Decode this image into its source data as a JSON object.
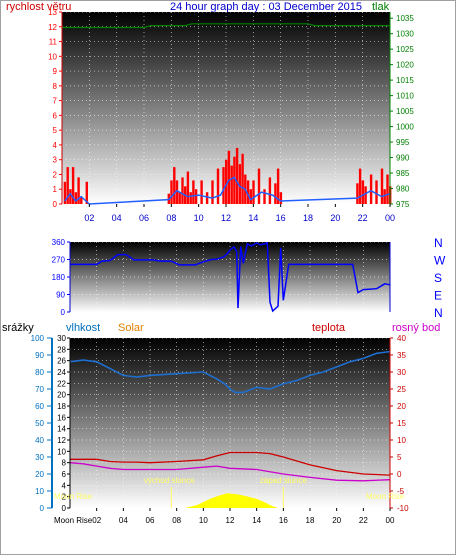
{
  "header": {
    "title": "24 hour graph day : 03 December 2015",
    "wind_label": "rychlost větru",
    "pressure_label": "tlak"
  },
  "colors": {
    "wind": "#ff0000",
    "gust": "#2060ff",
    "pressure": "#008000",
    "direction": "#0000ff",
    "humidity": "#1e6fd0",
    "temperature": "#cc0000",
    "dewpoint": "#cc00cc",
    "rain_axis": "#0070c0",
    "solar": "#ffff00",
    "solar_label": "#e08000",
    "moon": "#ffff66"
  },
  "labels": {
    "rain": "srážky",
    "humidity": "vlhkost",
    "solar": "Solar",
    "temperature": "teplota",
    "dewpoint": "rosný bod",
    "sunrise": "východ slunce",
    "sunset": "západ slunce",
    "moonrise_left": "Moon Rise",
    "moonrise_right": "Moon Rise",
    "moonrise_x": "Moon Rise02"
  },
  "time_ticks": [
    "02",
    "04",
    "06",
    "08",
    "10",
    "12",
    "14",
    "16",
    "18",
    "20",
    "22",
    "00"
  ],
  "chart_data": [
    {
      "type": "bar",
      "title": "24 hour graph day : 03 December 2015",
      "ylabel": "rychlost větru",
      "ylim": [
        0,
        13
      ],
      "y_ticks": [
        0,
        1,
        2,
        3,
        4,
        5,
        6,
        7,
        8,
        9,
        10,
        11,
        12,
        13
      ],
      "y2label": "tlak",
      "y2lim": [
        975,
        1037
      ],
      "y2_ticks": [
        975,
        980,
        985,
        990,
        995,
        1000,
        1005,
        1010,
        1015,
        1020,
        1025,
        1030,
        1035
      ],
      "series": [
        {
          "name": "rychlost větru",
          "values": [
            [
              0.2,
              1.5
            ],
            [
              0.4,
              2.5
            ],
            [
              0.6,
              1.0
            ],
            [
              0.8,
              2.5
            ],
            [
              1.0,
              0.8
            ],
            [
              1.2,
              1.8
            ],
            [
              1.4,
              0.5
            ],
            [
              1.6,
              0
            ],
            [
              1.8,
              1.5
            ],
            [
              2.0,
              0
            ],
            [
              7.8,
              0.7
            ],
            [
              8.0,
              1.6
            ],
            [
              8.2,
              2.5
            ],
            [
              8.4,
              1.6
            ],
            [
              8.6,
              0.8
            ],
            [
              8.8,
              1.8
            ],
            [
              9.0,
              1.2
            ],
            [
              9.2,
              2.2
            ],
            [
              9.4,
              0.8
            ],
            [
              9.6,
              1.6
            ],
            [
              9.8,
              1.0
            ],
            [
              10.2,
              1.6
            ],
            [
              10.6,
              0.8
            ],
            [
              11.0,
              1.6
            ],
            [
              11.4,
              2.4
            ],
            [
              11.8,
              2.5
            ],
            [
              12.0,
              3.0
            ],
            [
              12.2,
              3.6
            ],
            [
              12.4,
              2.6
            ],
            [
              12.6,
              3.2
            ],
            [
              12.8,
              3.8
            ],
            [
              13.0,
              2.7
            ],
            [
              13.2,
              3.4
            ],
            [
              13.4,
              2.0
            ],
            [
              13.6,
              1.6
            ],
            [
              13.8,
              1.0
            ],
            [
              14.0,
              1.6
            ],
            [
              14.4,
              2.4
            ],
            [
              14.8,
              1.0
            ],
            [
              15.2,
              1.8
            ],
            [
              15.6,
              1.4
            ],
            [
              15.8,
              2.4
            ],
            [
              16.0,
              0.8
            ],
            [
              21.6,
              1.4
            ],
            [
              21.8,
              2.4
            ],
            [
              22.0,
              1.6
            ],
            [
              22.2,
              1.2
            ],
            [
              22.6,
              2.0
            ],
            [
              23.0,
              1.6
            ],
            [
              23.4,
              2.4
            ],
            [
              23.6,
              1.0
            ],
            [
              23.8,
              2.0
            ],
            [
              24.0,
              1.2
            ]
          ]
        },
        {
          "name": "gust",
          "values": [
            [
              0.2,
              0.2
            ],
            [
              0.6,
              0.7
            ],
            [
              1.0,
              0.2
            ],
            [
              1.4,
              0.5
            ],
            [
              2.0,
              0
            ],
            [
              7.8,
              0.3
            ],
            [
              8.4,
              0.9
            ],
            [
              9.2,
              0.5
            ],
            [
              10.0,
              0.6
            ],
            [
              11.0,
              0.4
            ],
            [
              11.6,
              0.6
            ],
            [
              12.2,
              1.6
            ],
            [
              12.6,
              1.8
            ],
            [
              13.0,
              1.2
            ],
            [
              13.4,
              1.0
            ],
            [
              13.8,
              0.3
            ],
            [
              14.6,
              0.8
            ],
            [
              15.4,
              0.6
            ],
            [
              16.0,
              0.2
            ],
            [
              21.6,
              0.4
            ],
            [
              22.6,
              0.9
            ],
            [
              23.4,
              0.5
            ],
            [
              24.0,
              0.7
            ]
          ]
        },
        {
          "name": "tlak",
          "values": [
            [
              0,
              1032
            ],
            [
              6,
              1032
            ],
            [
              6.5,
              1032.6
            ],
            [
              9,
              1032.6
            ],
            [
              9.5,
              1033.2
            ],
            [
              18,
              1033.2
            ],
            [
              18.5,
              1032.6
            ],
            [
              24,
              1032.6
            ]
          ]
        }
      ]
    },
    {
      "type": "line",
      "ylim": [
        0,
        360
      ],
      "y_ticks": [
        0,
        90,
        180,
        270,
        360
      ],
      "compass_labels": [
        "N",
        "W",
        "S",
        "E",
        "N"
      ],
      "series": [
        {
          "name": "direction",
          "values": [
            [
              0,
              245
            ],
            [
              2,
              245
            ],
            [
              2.4,
              262
            ],
            [
              3,
              265
            ],
            [
              3.6,
              295
            ],
            [
              4.2,
              295
            ],
            [
              4.8,
              268
            ],
            [
              6.2,
              268
            ],
            [
              6.8,
              262
            ],
            [
              7.6,
              262
            ],
            [
              8.2,
              242
            ],
            [
              9.4,
              242
            ],
            [
              10.0,
              258
            ],
            [
              10.6,
              270
            ],
            [
              11.0,
              272
            ],
            [
              11.5,
              282
            ],
            [
              11.8,
              300
            ],
            [
              12.0,
              320
            ],
            [
              12.3,
              335
            ],
            [
              12.5,
              312
            ],
            [
              12.6,
              20
            ],
            [
              12.8,
              338
            ],
            [
              13.0,
              250
            ],
            [
              13.3,
              350
            ],
            [
              13.6,
              340
            ],
            [
              14.0,
              355
            ],
            [
              14.3,
              345
            ],
            [
              14.8,
              355
            ],
            [
              15.0,
              50
            ],
            [
              15.2,
              5
            ],
            [
              15.6,
              30
            ],
            [
              15.8,
              330
            ],
            [
              16.0,
              60
            ],
            [
              16.4,
              245
            ],
            [
              21.2,
              245
            ],
            [
              21.6,
              100
            ],
            [
              22.0,
              115
            ],
            [
              23.0,
              120
            ],
            [
              23.6,
              145
            ],
            [
              24.0,
              140
            ]
          ]
        }
      ]
    },
    {
      "type": "line",
      "ylim": [
        0,
        30
      ],
      "y_ticks": [
        0,
        2,
        4,
        6,
        8,
        10,
        12,
        14,
        16,
        18,
        20,
        22,
        24,
        26,
        28,
        30
      ],
      "y_left_humidity_ticks": [
        0,
        10,
        20,
        30,
        40,
        50,
        60,
        70,
        80,
        90,
        100
      ],
      "y2lim": [
        -10,
        40
      ],
      "y2_ticks": [
        -10,
        -5,
        0,
        5,
        10,
        15,
        20,
        25,
        30,
        35,
        40
      ],
      "series": [
        {
          "name": "vlhkost",
          "values": [
            [
              0,
              86
            ],
            [
              1,
              87
            ],
            [
              2,
              86
            ],
            [
              3,
              82
            ],
            [
              4,
              78
            ],
            [
              5,
              77
            ],
            [
              6,
              78
            ],
            [
              8,
              79
            ],
            [
              10,
              80
            ],
            [
              11,
              76
            ],
            [
              11.6,
              73
            ],
            [
              12,
              70
            ],
            [
              12.4,
              68
            ],
            [
              13,
              68
            ],
            [
              14,
              71
            ],
            [
              15,
              70
            ],
            [
              16,
              73
            ],
            [
              17,
              75
            ],
            [
              18,
              78
            ],
            [
              19,
              80
            ],
            [
              20,
              83
            ],
            [
              21,
              86
            ],
            [
              22,
              88
            ],
            [
              23,
              91
            ],
            [
              24,
              92
            ]
          ]
        },
        {
          "name": "teplota",
          "values": [
            [
              0,
              8.6
            ],
            [
              1,
              8.6
            ],
            [
              2,
              8.6
            ],
            [
              3,
              8.2
            ],
            [
              4,
              8.1
            ],
            [
              5,
              8.1
            ],
            [
              6,
              8.0
            ],
            [
              8,
              8.2
            ],
            [
              10,
              8.5
            ],
            [
              11,
              9.2
            ],
            [
              12,
              9.8
            ],
            [
              14,
              9.8
            ],
            [
              15,
              9.6
            ],
            [
              16,
              9.0
            ],
            [
              18,
              7.6
            ],
            [
              20,
              6.6
            ],
            [
              22,
              6.0
            ],
            [
              24,
              5.8
            ]
          ]
        },
        {
          "name": "rosný bod",
          "values": [
            [
              0,
              8.0
            ],
            [
              1,
              7.8
            ],
            [
              2,
              7.4
            ],
            [
              3,
              7.0
            ],
            [
              4,
              6.8
            ],
            [
              6,
              6.8
            ],
            [
              8,
              6.8
            ],
            [
              10,
              7.2
            ],
            [
              11,
              7.4
            ],
            [
              12,
              7.0
            ],
            [
              14,
              6.8
            ],
            [
              16,
              6.0
            ],
            [
              18,
              5.4
            ],
            [
              20,
              4.9
            ],
            [
              22,
              4.8
            ],
            [
              24,
              5.0
            ]
          ]
        },
        {
          "name": "Solar",
          "values": [
            [
              8.6,
              0
            ],
            [
              9.5,
              0.5
            ],
            [
              10.5,
              1.6
            ],
            [
              11.2,
              2.2
            ],
            [
              11.8,
              2.6
            ],
            [
              12.6,
              2.4
            ],
            [
              13.2,
              2.1
            ],
            [
              14.0,
              1.6
            ],
            [
              14.6,
              1.0
            ],
            [
              15.2,
              0.3
            ],
            [
              15.6,
              0
            ]
          ]
        }
      ],
      "markers": {
        "sunrise": 7.6,
        "sunset": 16.0
      }
    }
  ]
}
